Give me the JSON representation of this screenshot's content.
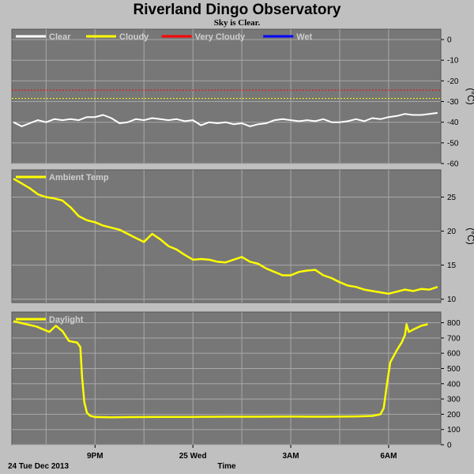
{
  "header": {
    "title": "Riverland Dingo Observatory",
    "subtitle": "Sky is Clear."
  },
  "footer": {
    "date_label": "24 Tue Dec 2013",
    "xlabel": "Time"
  },
  "colors": {
    "panel_bg": "#777777",
    "outer_bg": "#c0c0c0",
    "grid": "#a8a8a8",
    "clear": "#ffffff",
    "cloudy": "#ffff00",
    "very_cloudy": "#ff0000",
    "wet": "#0000ff",
    "ambient": "#ffff00",
    "daylight": "#ffff00"
  },
  "chart_data": [
    {
      "type": "line",
      "name": "sky",
      "unit": "(°C)",
      "ylim": [
        -60,
        5
      ],
      "yticks": [
        0,
        -10,
        -20,
        -30,
        -40,
        -50,
        -60
      ],
      "legend": [
        {
          "label": "Clear",
          "color": "#ffffff"
        },
        {
          "label": "Cloudy",
          "color": "#ffff00"
        },
        {
          "label": "Very Cloudy",
          "color": "#ff0000"
        },
        {
          "label": "Wet",
          "color": "#0000ff"
        }
      ],
      "thresholds": [
        {
          "value": -24.5,
          "color": "#ff0000"
        },
        {
          "value": -28.5,
          "color": "#ffff00"
        }
      ],
      "series": [
        {
          "name": "Clear",
          "color": "#ffffff",
          "x": [
            18.5,
            18.75,
            19.0,
            19.25,
            19.5,
            19.75,
            20.0,
            20.25,
            20.5,
            20.75,
            21.0,
            21.25,
            21.5,
            21.75,
            22.0,
            22.25,
            22.5,
            22.75,
            23.0,
            23.25,
            23.5,
            23.75,
            24.0,
            24.25,
            24.5,
            24.75,
            25.0,
            25.25,
            25.5,
            25.75,
            26.0,
            26.25,
            26.5,
            26.75,
            27.0,
            27.25,
            27.5,
            27.75,
            28.0,
            28.25,
            28.5,
            28.75,
            29.0,
            29.25,
            29.5,
            29.75,
            30.0,
            30.25,
            30.5,
            30.75,
            31.0,
            31.25,
            31.5
          ],
          "y": [
            -40,
            -42,
            -40.5,
            -39,
            -40,
            -38.5,
            -39,
            -38.5,
            -39,
            -37.5,
            -37.5,
            -36.5,
            -38,
            -40.5,
            -40,
            -38.5,
            -39,
            -38,
            -38.5,
            -39,
            -38.5,
            -39.5,
            -39,
            -41.5,
            -40,
            -40.5,
            -40,
            -41,
            -40.5,
            -42,
            -41,
            -40.5,
            -39,
            -38.5,
            -39,
            -39.5,
            -39,
            -39.5,
            -38.5,
            -40,
            -40,
            -39.5,
            -38.5,
            -39.5,
            -38,
            -38.5,
            -37.5,
            -37,
            -36,
            -36.5,
            -36.5,
            -36,
            -35.5
          ]
        }
      ]
    },
    {
      "type": "line",
      "name": "ambient",
      "unit": "(°C)",
      "ylim": [
        9.5,
        29
      ],
      "yticks": [
        25,
        20,
        15,
        10
      ],
      "legend": [
        {
          "label": "Ambient Temp",
          "color": "#ffff00"
        }
      ],
      "series": [
        {
          "name": "Ambient Temp",
          "color": "#ffff00",
          "x": [
            18.5,
            18.75,
            19.0,
            19.25,
            19.5,
            19.75,
            20.0,
            20.25,
            20.5,
            20.75,
            21.0,
            21.25,
            21.5,
            21.75,
            22.0,
            22.25,
            22.5,
            22.75,
            23.0,
            23.25,
            23.5,
            23.75,
            24.0,
            24.25,
            24.5,
            24.75,
            25.0,
            25.25,
            25.5,
            25.75,
            26.0,
            26.25,
            26.5,
            26.75,
            27.0,
            27.25,
            27.5,
            27.75,
            28.0,
            28.25,
            28.5,
            28.75,
            29.0,
            29.25,
            29.5,
            29.75,
            30.0,
            30.25,
            30.5,
            30.75,
            31.0,
            31.25,
            31.5
          ],
          "y": [
            27.7,
            27,
            26.3,
            25.4,
            25,
            24.8,
            24.5,
            23.5,
            22.2,
            21.6,
            21.3,
            20.8,
            20.5,
            20.2,
            19.6,
            19,
            18.4,
            19.6,
            18.8,
            17.8,
            17.3,
            16.5,
            15.8,
            15.9,
            15.8,
            15.5,
            15.4,
            15.8,
            16.2,
            15.5,
            15.2,
            14.5,
            14,
            13.5,
            13.5,
            14,
            14.2,
            14.3,
            13.5,
            13.1,
            12.5,
            12,
            11.8,
            11.4,
            11.2,
            11,
            10.8,
            11.1,
            11.4,
            11.2,
            11.5,
            11.4,
            11.8
          ]
        }
      ]
    },
    {
      "type": "line",
      "name": "daylight",
      "unit": "",
      "ylim": [
        0,
        870
      ],
      "yticks": [
        800,
        700,
        600,
        500,
        400,
        300,
        200,
        100,
        0
      ],
      "legend": [
        {
          "label": "Daylight",
          "color": "#ffff00"
        }
      ],
      "xticks": [
        {
          "value": 21,
          "label": "9PM"
        },
        {
          "value": 24,
          "label": "25 Wed"
        },
        {
          "value": 27,
          "label": "3AM"
        },
        {
          "value": 30,
          "label": "6AM"
        }
      ],
      "series": [
        {
          "name": "Daylight",
          "color": "#ffff00",
          "x": [
            18.5,
            18.8,
            19.2,
            19.6,
            19.8,
            20.0,
            20.2,
            20.45,
            20.55,
            20.6,
            20.67,
            20.75,
            20.85,
            21.0,
            21.5,
            22.0,
            23.0,
            24.0,
            25.0,
            26.0,
            27.0,
            28.0,
            29.0,
            29.5,
            29.75,
            29.85,
            29.95,
            30.05,
            30.25,
            30.4,
            30.5,
            30.55,
            30.62,
            30.8,
            31.0,
            31.2
          ],
          "y": [
            810,
            795,
            775,
            740,
            780,
            745,
            680,
            670,
            640,
            450,
            280,
            210,
            190,
            182,
            180,
            181,
            183,
            183,
            184,
            184,
            185,
            184,
            186,
            189,
            200,
            240,
            400,
            540,
            620,
            670,
            720,
            790,
            740,
            760,
            780,
            790
          ]
        }
      ]
    }
  ]
}
